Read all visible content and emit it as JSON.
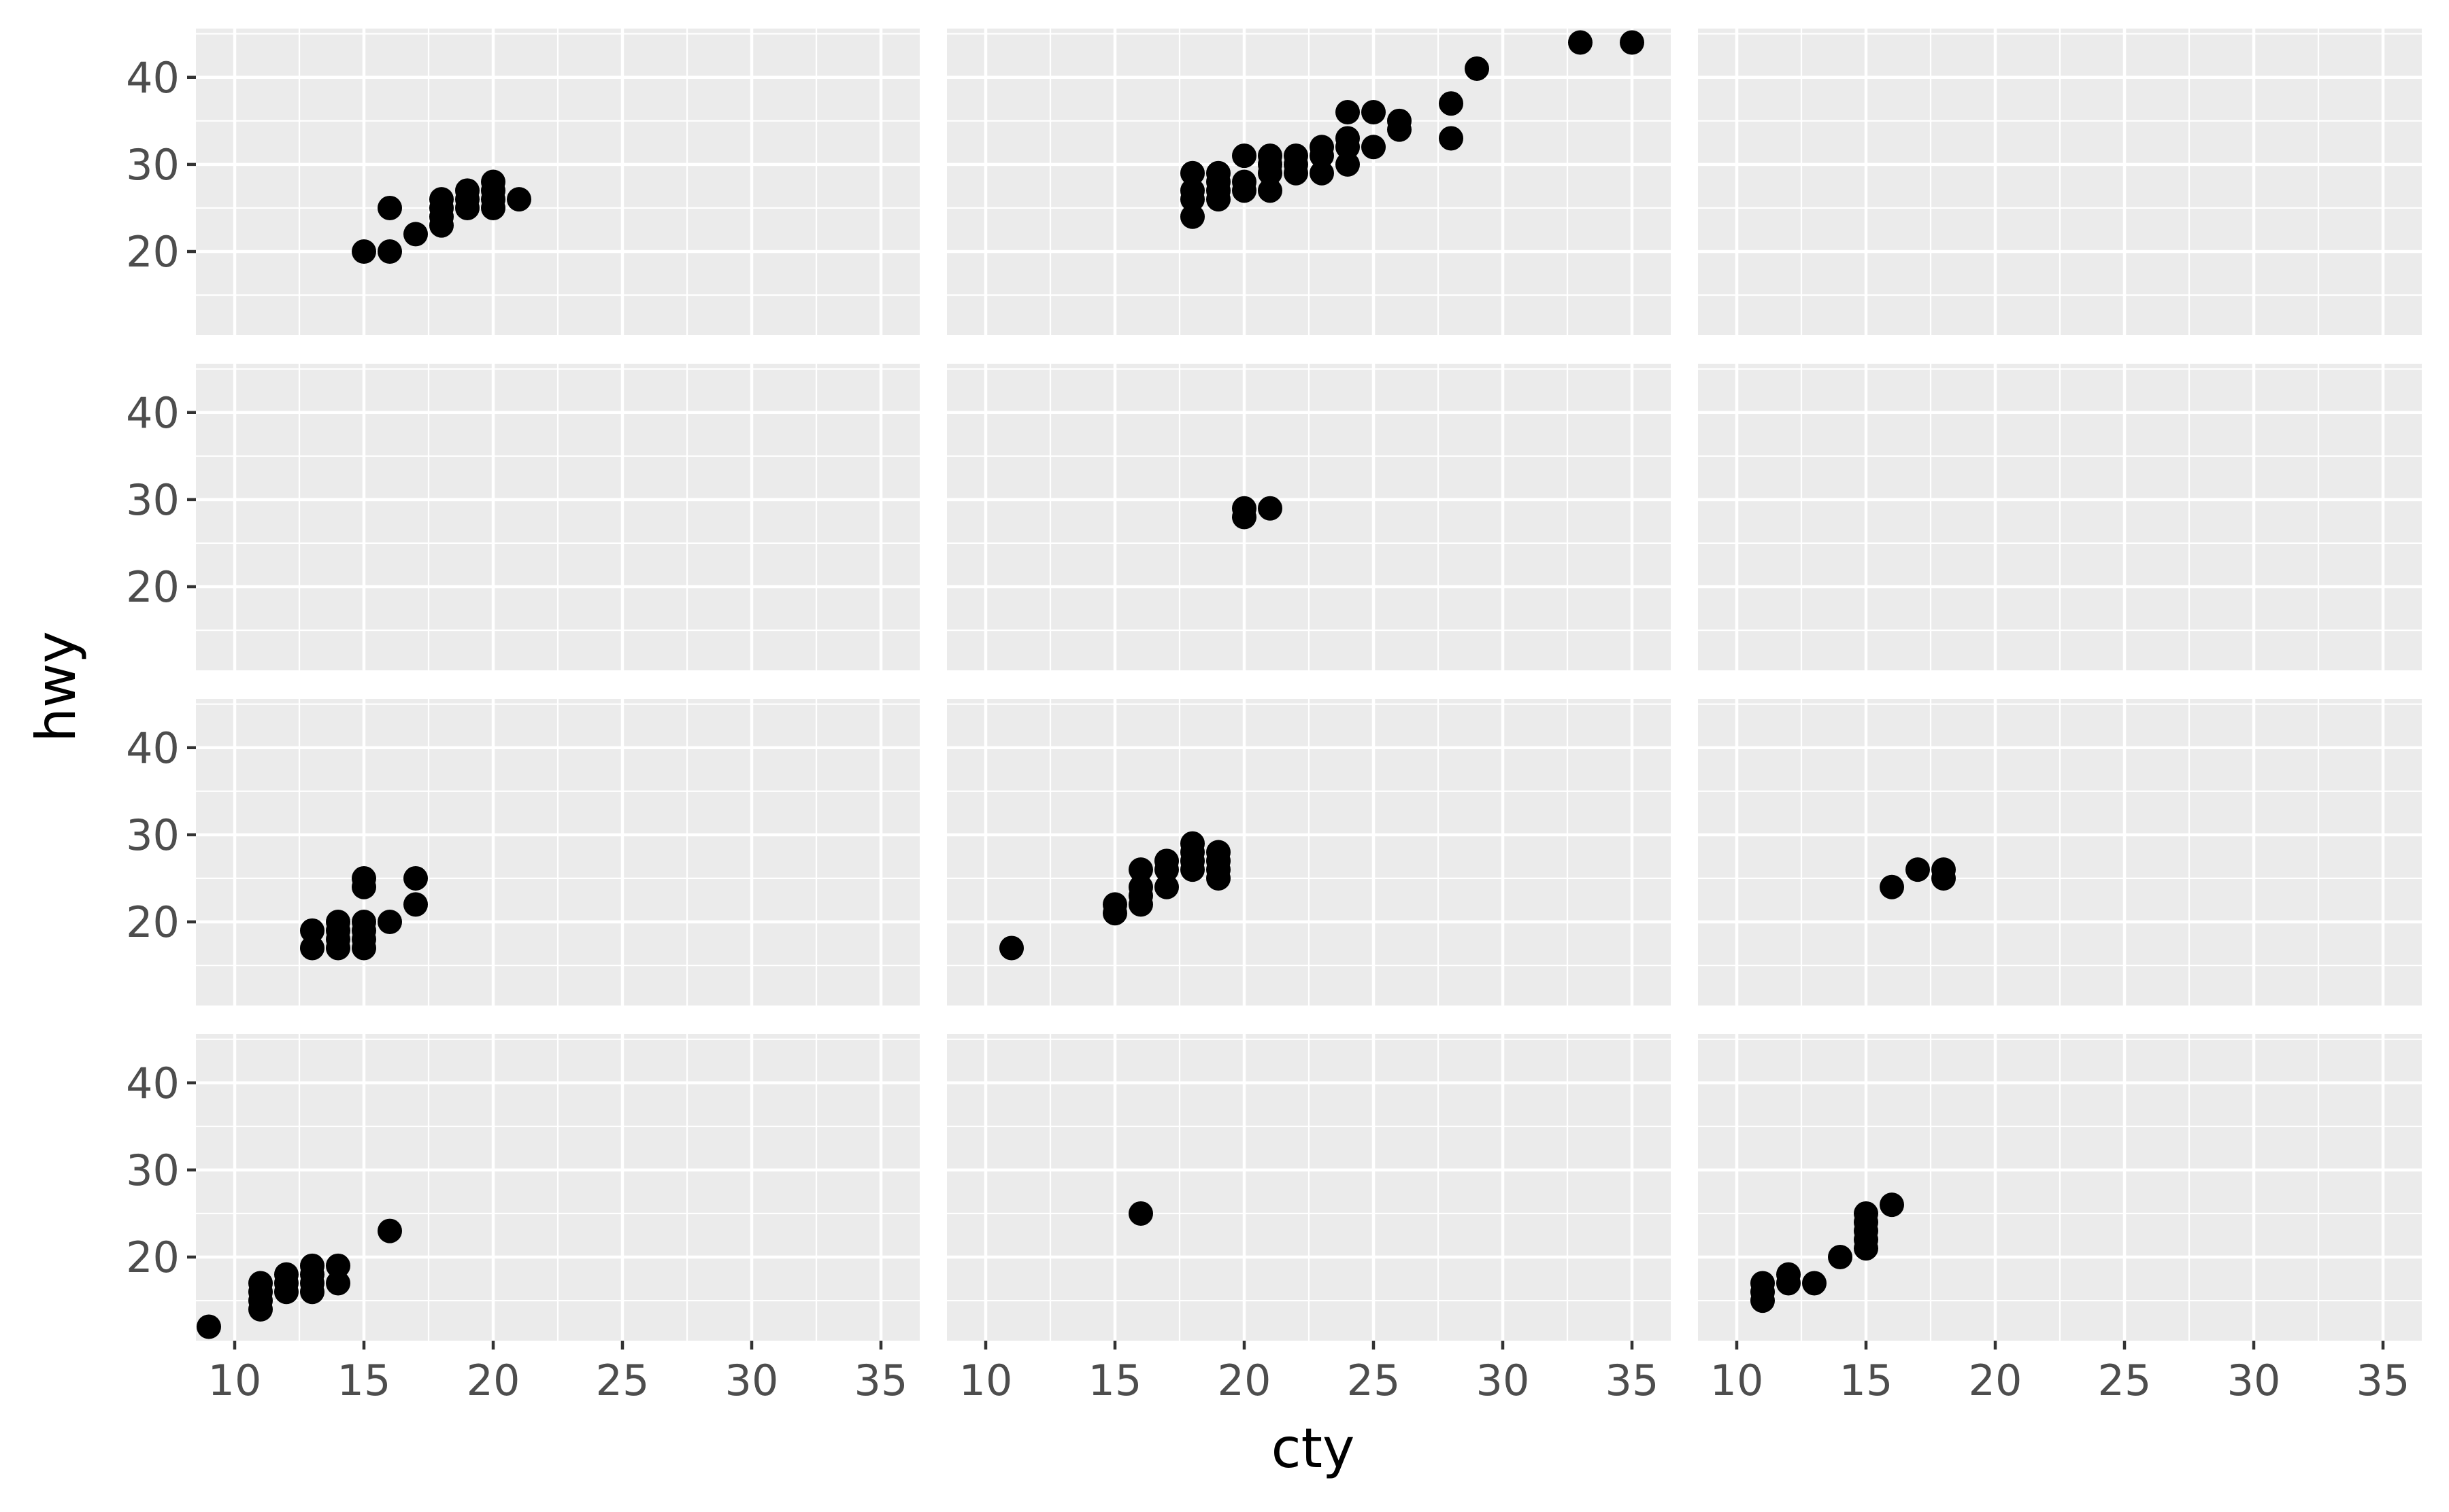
{
  "chart_data": {
    "type": "scatter",
    "facet_layout": {
      "rows": 4,
      "cols": 3
    },
    "xlabel": "cty",
    "ylabel": "hwy",
    "xlim": [
      8.5,
      36.5
    ],
    "ylim": [
      10.4,
      45.6
    ],
    "x_ticks": [
      10,
      15,
      20,
      25,
      30,
      35
    ],
    "y_ticks": [
      20,
      30,
      40
    ],
    "grid": true,
    "point_color": "#000000",
    "panel_background": "#ebebeb",
    "panels": [
      {
        "row": 0,
        "col": 0,
        "points": [
          [
            15,
            20
          ],
          [
            16,
            20
          ],
          [
            16,
            25
          ],
          [
            17,
            22
          ],
          [
            18,
            23
          ],
          [
            18,
            24
          ],
          [
            18,
            25
          ],
          [
            18,
            26
          ],
          [
            19,
            25
          ],
          [
            19,
            26
          ],
          [
            19,
            27
          ],
          [
            20,
            25
          ],
          [
            20,
            26
          ],
          [
            20,
            27
          ],
          [
            20,
            28
          ],
          [
            21,
            26
          ]
        ]
      },
      {
        "row": 0,
        "col": 1,
        "points": [
          [
            18,
            24
          ],
          [
            18,
            26
          ],
          [
            18,
            27
          ],
          [
            18,
            29
          ],
          [
            19,
            26
          ],
          [
            19,
            27
          ],
          [
            19,
            28
          ],
          [
            19,
            29
          ],
          [
            20,
            27
          ],
          [
            20,
            28
          ],
          [
            20,
            31
          ],
          [
            21,
            27
          ],
          [
            21,
            29
          ],
          [
            21,
            30
          ],
          [
            21,
            31
          ],
          [
            22,
            29
          ],
          [
            22,
            30
          ],
          [
            22,
            31
          ],
          [
            23,
            29
          ],
          [
            23,
            31
          ],
          [
            23,
            32
          ],
          [
            24,
            30
          ],
          [
            24,
            32
          ],
          [
            24,
            33
          ],
          [
            24,
            36
          ],
          [
            25,
            32
          ],
          [
            25,
            36
          ],
          [
            26,
            34
          ],
          [
            26,
            35
          ],
          [
            28,
            33
          ],
          [
            28,
            37
          ],
          [
            29,
            41
          ],
          [
            33,
            44
          ],
          [
            35,
            44
          ]
        ]
      },
      {
        "row": 0,
        "col": 2,
        "points": []
      },
      {
        "row": 1,
        "col": 0,
        "points": []
      },
      {
        "row": 1,
        "col": 1,
        "points": [
          [
            20,
            28
          ],
          [
            20,
            29
          ],
          [
            21,
            29
          ]
        ]
      },
      {
        "row": 1,
        "col": 2,
        "points": []
      },
      {
        "row": 2,
        "col": 0,
        "points": [
          [
            13,
            17
          ],
          [
            13,
            19
          ],
          [
            14,
            17
          ],
          [
            14,
            18
          ],
          [
            14,
            19
          ],
          [
            14,
            20
          ],
          [
            15,
            17
          ],
          [
            15,
            18
          ],
          [
            15,
            19
          ],
          [
            15,
            20
          ],
          [
            15,
            24
          ],
          [
            15,
            25
          ],
          [
            16,
            20
          ],
          [
            17,
            22
          ],
          [
            17,
            25
          ]
        ]
      },
      {
        "row": 2,
        "col": 1,
        "points": [
          [
            11,
            17
          ],
          [
            15,
            21
          ],
          [
            15,
            22
          ],
          [
            16,
            22
          ],
          [
            16,
            23
          ],
          [
            16,
            24
          ],
          [
            16,
            26
          ],
          [
            17,
            24
          ],
          [
            17,
            26
          ],
          [
            17,
            27
          ],
          [
            18,
            26
          ],
          [
            18,
            27
          ],
          [
            18,
            28
          ],
          [
            18,
            29
          ],
          [
            19,
            25
          ],
          [
            19,
            26
          ],
          [
            19,
            27
          ],
          [
            19,
            28
          ]
        ]
      },
      {
        "row": 2,
        "col": 2,
        "points": [
          [
            16,
            24
          ],
          [
            17,
            26
          ],
          [
            18,
            25
          ],
          [
            18,
            26
          ]
        ]
      },
      {
        "row": 3,
        "col": 0,
        "points": [
          [
            9,
            12
          ],
          [
            11,
            14
          ],
          [
            11,
            15
          ],
          [
            11,
            16
          ],
          [
            11,
            17
          ],
          [
            12,
            16
          ],
          [
            12,
            17
          ],
          [
            12,
            18
          ],
          [
            13,
            16
          ],
          [
            13,
            17
          ],
          [
            13,
            18
          ],
          [
            13,
            19
          ],
          [
            14,
            17
          ],
          [
            14,
            19
          ],
          [
            16,
            23
          ]
        ]
      },
      {
        "row": 3,
        "col": 1,
        "points": [
          [
            16,
            25
          ]
        ]
      },
      {
        "row": 3,
        "col": 2,
        "points": [
          [
            11,
            15
          ],
          [
            11,
            16
          ],
          [
            11,
            17
          ],
          [
            12,
            17
          ],
          [
            12,
            18
          ],
          [
            13,
            17
          ],
          [
            14,
            20
          ],
          [
            15,
            21
          ],
          [
            15,
            22
          ],
          [
            15,
            23
          ],
          [
            15,
            24
          ],
          [
            15,
            25
          ],
          [
            16,
            26
          ]
        ]
      }
    ]
  }
}
